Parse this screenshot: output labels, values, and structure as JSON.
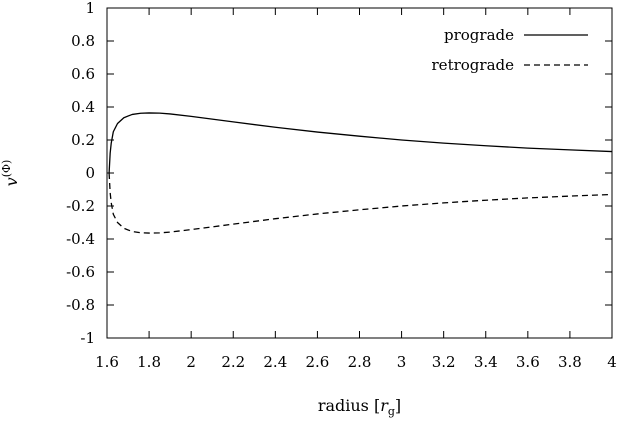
{
  "chart_data": {
    "type": "line",
    "title": "",
    "xlabel": "radius [",
    "xlabel_symbol": "r",
    "xlabel_subscript": "g",
    "xlabel_close": "]",
    "ylabel": "v",
    "ylabel_superscript": "(Φ)",
    "xlim": [
      1.6,
      4.0
    ],
    "ylim": [
      -1.0,
      1.0
    ],
    "xticks": [
      1.6,
      1.8,
      2.0,
      2.2,
      2.4,
      2.6,
      2.8,
      3.0,
      3.2,
      3.4,
      3.6,
      3.8,
      4.0
    ],
    "xtick_labels": [
      "1.6",
      "1.8",
      "2",
      "2.2",
      "2.4",
      "2.6",
      "2.8",
      "3",
      "3.2",
      "3.4",
      "3.6",
      "3.8",
      "4"
    ],
    "yticks": [
      -1.0,
      -0.8,
      -0.6,
      -0.4,
      -0.2,
      0.0,
      0.2,
      0.4,
      0.6,
      0.8,
      1.0
    ],
    "ytick_labels": [
      "-1",
      "-0.8",
      "-0.6",
      "-0.4",
      "-0.2",
      "0",
      "0.2",
      "0.4",
      "0.6",
      "0.8",
      "1"
    ],
    "grid": false,
    "legend_position": "top-right",
    "series": [
      {
        "name": "prograde",
        "line_style": "solid",
        "color": "#000000",
        "x": [
          1.61,
          1.615,
          1.62,
          1.63,
          1.65,
          1.68,
          1.72,
          1.76,
          1.8,
          1.85,
          1.9,
          2.0,
          2.2,
          2.4,
          2.6,
          2.8,
          3.0,
          3.2,
          3.4,
          3.6,
          3.8,
          4.0
        ],
        "y": [
          0.0,
          0.12,
          0.18,
          0.25,
          0.3,
          0.335,
          0.355,
          0.362,
          0.364,
          0.363,
          0.358,
          0.343,
          0.31,
          0.277,
          0.248,
          0.223,
          0.2,
          0.181,
          0.165,
          0.151,
          0.14,
          0.13
        ]
      },
      {
        "name": "retrograde",
        "line_style": "dashed",
        "color": "#000000",
        "x": [
          1.61,
          1.615,
          1.62,
          1.63,
          1.65,
          1.68,
          1.72,
          1.76,
          1.8,
          1.85,
          1.9,
          2.0,
          2.2,
          2.4,
          2.6,
          2.8,
          3.0,
          3.2,
          3.4,
          3.6,
          3.8,
          4.0
        ],
        "y": [
          0.0,
          -0.12,
          -0.18,
          -0.25,
          -0.3,
          -0.335,
          -0.355,
          -0.362,
          -0.364,
          -0.363,
          -0.358,
          -0.343,
          -0.31,
          -0.277,
          -0.248,
          -0.223,
          -0.2,
          -0.181,
          -0.165,
          -0.151,
          -0.14,
          -0.13
        ]
      }
    ]
  }
}
